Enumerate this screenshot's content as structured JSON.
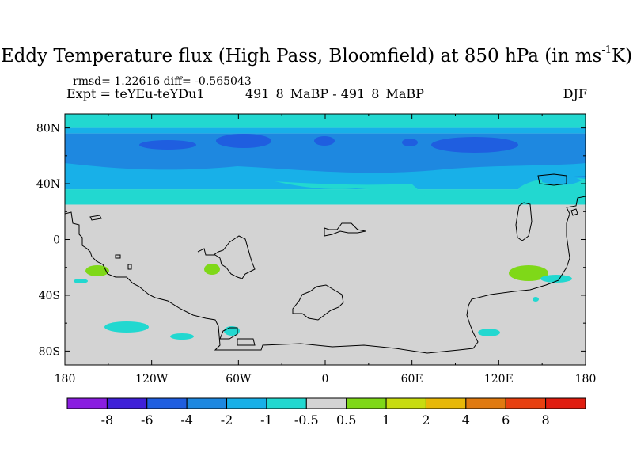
{
  "chart_data": {
    "type": "heatmap",
    "title_main": "Eddy Temperature flux (High Pass, Bloomfield) at 850 hPa (in ms",
    "title_sup": "-1",
    "title_end": "K)",
    "stats_text": "rmsd= 1.22616 diff= -0.565043",
    "expt_text": "Expt = teYEu-teYDu1",
    "cases_text": "491_8_MaBP - 491_8_MaBP",
    "season_text": "DJF",
    "x_ticks": [
      "180",
      "120W",
      "60W",
      "0",
      "60E",
      "120E",
      "180"
    ],
    "y_ticks": [
      "80N",
      "40N",
      "0",
      "40S",
      "80S"
    ],
    "xlim": [
      -180,
      180
    ],
    "ylim": [
      -90,
      90
    ],
    "colorbar": {
      "labels": [
        "-8",
        "-6",
        "-4",
        "-2",
        "-1",
        "-0.5",
        "0.5",
        "1",
        "2",
        "4",
        "6",
        "8"
      ],
      "colors": [
        "#8a1ee0",
        "#3f20d8",
        "#1f5ee0",
        "#1e88e0",
        "#18b0e8",
        "#22d8d0",
        "#d3d3d3",
        "#7fd818",
        "#c8dc10",
        "#e8b808",
        "#e07a10",
        "#e84010",
        "#e01d10"
      ]
    },
    "zonal_bands": [
      {
        "lat_range": [
          80,
          90
        ],
        "level": "-0.5 to -1",
        "color": "#22d8d0"
      },
      {
        "lat_range": [
          76,
          80
        ],
        "level": "-1 to -2",
        "color": "#18b0e8"
      },
      {
        "lat_range": [
          45,
          76
        ],
        "level": "-2 to -4",
        "color": "#1e88e0"
      },
      {
        "lat_range": [
          36,
          45
        ],
        "level": "-1 to -2",
        "color": "#18b0e8"
      },
      {
        "lat_range": [
          25,
          36
        ],
        "level": "-0.5 to -1",
        "color": "#22d8d0"
      },
      {
        "lat_range": [
          -90,
          25
        ],
        "level": "-0.5 to 0.5",
        "color": "#d3d3d3"
      }
    ]
  }
}
